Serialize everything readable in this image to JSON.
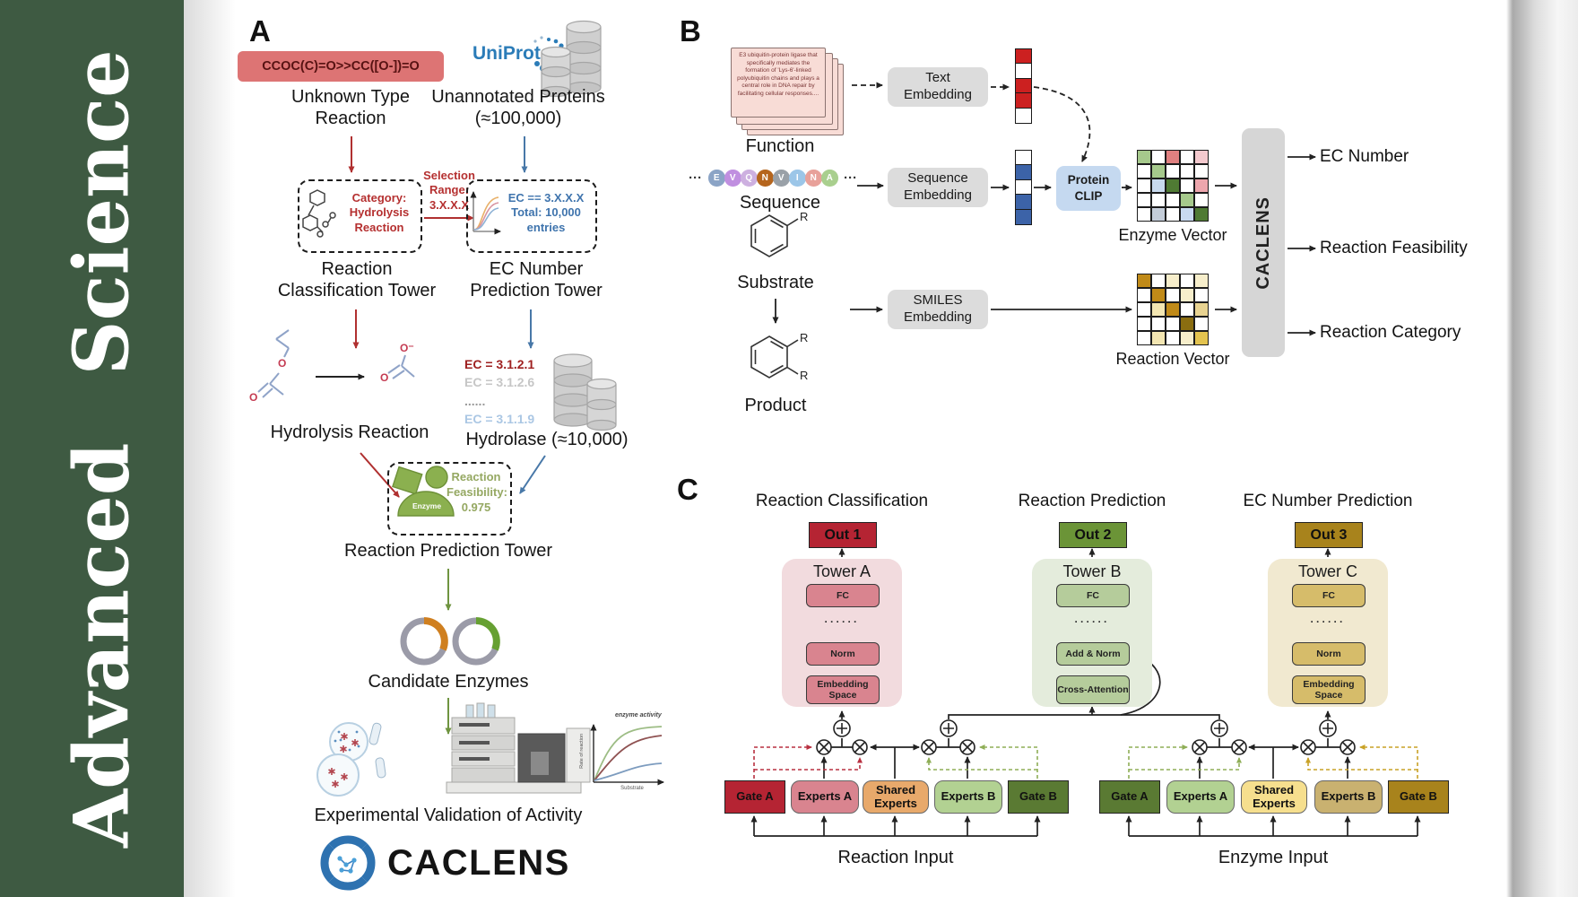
{
  "journal": {
    "name": "Advanced Science"
  },
  "colors": {
    "sidebar_green": "#3e5a42",
    "red_accent": "#b53030",
    "blue_accent": "#3f74ad",
    "green_arrow": "#6f9440",
    "smiles_box_bg": "#dd7474",
    "out1": "#b52433",
    "out2": "#6b9437",
    "out3": "#a8831c",
    "uniprot_blue": "#2b7cb8"
  },
  "panelA": {
    "label": "A",
    "smiles": "CCOC(C)=O>>CC([O-])=O",
    "unknown_reaction": "Unknown Type Reaction",
    "uniprot_logo": "UniProt",
    "unannotated_proteins": "Unannotated Proteins (≈100,000)",
    "selection_range": [
      "Selection",
      "Range:",
      "3.X.X.X"
    ],
    "category_box": [
      "Category:",
      "Hydrolysis",
      "Reaction"
    ],
    "ec_box": [
      "EC == 3.X.X.X",
      "Total: 10,000",
      "entries"
    ],
    "classification_tower": "Reaction Classification Tower",
    "ec_tower": "EC Number Prediction Tower",
    "hydrolysis_reaction": "Hydrolysis Reaction",
    "ec_list": [
      {
        "text": "EC = 3.1.2.1",
        "color": "#9e1f1f"
      },
      {
        "text": "EC = 3.1.2.6",
        "color": "#c6c6c6"
      },
      {
        "text": "......",
        "color": "#9a9a9a"
      },
      {
        "text": "EC = 3.1.1.9",
        "color": "#abc7e4"
      }
    ],
    "hydrolase": "Hydrolase (≈10,000)",
    "enzyme_blob": "Enzyme",
    "feasibility": [
      "Reaction",
      "Feasibility:",
      "0.975"
    ],
    "prediction_tower": "Reaction Prediction Tower",
    "candidate_enzymes": "Candidate Enzymes",
    "atoms": {
      "o": "O",
      "o_minus": "O⁻"
    },
    "activity_plot": {
      "curve_label": "enzyme activity",
      "ylabel": "Rate of reaction",
      "xlabel": "Substrate"
    },
    "validation": "Experimental Validation of Activity",
    "logo": "CACLENS"
  },
  "panelB": {
    "label": "B",
    "function_card": "E3 ubiquitin-protein ligase that specifically mediates the formation of 'Lys-6'-linked polyubiquitin chains and plays a central role in DNA repair by facilitating cellular responses....",
    "function_label": "Function",
    "sequence": {
      "ellipsis": "···",
      "residues": [
        {
          "letter": "E",
          "color": "#8ba4c6"
        },
        {
          "letter": "V",
          "color": "#c08fe0"
        },
        {
          "letter": "Q",
          "color": "#cdb0e0"
        },
        {
          "letter": "N",
          "color": "#b5651d"
        },
        {
          "letter": "V",
          "color": "#9aa1a8"
        },
        {
          "letter": "I",
          "color": "#9cc6e8"
        },
        {
          "letter": "N",
          "color": "#e8a19a"
        },
        {
          "letter": "A",
          "color": "#a9cf8e"
        }
      ],
      "label": "Sequence"
    },
    "substrate_label": "Substrate",
    "product_label": "Product",
    "r_group": "R",
    "text_embedding": [
      "Text",
      "Embedding"
    ],
    "sequence_embedding": [
      "Sequence",
      "Embedding"
    ],
    "smiles_embedding": [
      "SMILES",
      "Embedding"
    ],
    "protein_clip": [
      "Protein",
      "CLIP"
    ],
    "text_vector": [
      "#cc2020",
      "#ffffff",
      "#cc2020",
      "#cc2020",
      "#ffffff"
    ],
    "sequence_vector": [
      "#ffffff",
      "#3c63a8",
      "#ffffff",
      "#3c63a8",
      "#3c63a8"
    ],
    "enzyme_vector_label": "Enzyme Vector",
    "reaction_vector_label": "Reaction Vector",
    "enzyme_matrix": [
      [
        "#a6c98c",
        "#ffffff",
        "#e08080",
        "#ffffff",
        "#f4c9ce"
      ],
      [
        "#ffffff",
        "#a6c98c",
        "#ffffff",
        "#ffffff",
        "#ffffff"
      ],
      [
        "#ffffff",
        "#c8daee",
        "#4f7a33",
        "#ffffff",
        "#eda6ad"
      ],
      [
        "#ffffff",
        "#ffffff",
        "#ffffff",
        "#a6c98c",
        "#ffffff"
      ],
      [
        "#ffffff",
        "#c4cdd9",
        "#ffffff",
        "#c9daf0",
        "#4f7a33"
      ]
    ],
    "reaction_matrix": [
      [
        "#c08a18",
        "#ffffff",
        "#f7eecb",
        "#ffffff",
        "#f7eecb"
      ],
      [
        "#ffffff",
        "#c08a18",
        "#ffffff",
        "#f7eecb",
        "#ffffff"
      ],
      [
        "#ffffff",
        "#f3e6b2",
        "#c08a18",
        "#ffffff",
        "#e8d391"
      ],
      [
        "#ffffff",
        "#ffffff",
        "#ffffff",
        "#8a6d10",
        "#ffffff"
      ],
      [
        "#ffffff",
        "#f3e6b2",
        "#ffffff",
        "#f7eecb",
        "#e3c34f"
      ]
    ],
    "caclens_bar": "CACLENS",
    "outputs": [
      "EC Number",
      "Reaction Feasibility",
      "Reaction Category"
    ]
  },
  "panelC": {
    "label": "C",
    "columns": [
      {
        "title": "Reaction Classification",
        "out": "Out 1",
        "tower": "Tower A",
        "blocks": [
          "FC",
          "Norm",
          "Embedding Space"
        ]
      },
      {
        "title": "Reaction Prediction",
        "out": "Out 2",
        "tower": "Tower B",
        "blocks": [
          "FC",
          "Add & Norm",
          "Cross-Attention"
        ]
      },
      {
        "title": "EC Number Prediction",
        "out": "Out 3",
        "tower": "Tower C",
        "blocks": [
          "FC",
          "Norm",
          "Embedding Space"
        ]
      }
    ],
    "dots": "······",
    "moe_left": {
      "gate_a": "Gate A",
      "experts_a": "Experts A",
      "shared": "Shared Experts",
      "experts_b": "Experts B",
      "gate_b": "Gate B",
      "input": "Reaction Input"
    },
    "moe_right": {
      "gate_a": "Gate A",
      "experts_a": "Experts A",
      "shared": "Shared Experts",
      "experts_b": "Experts B",
      "gate_b": "Gate B",
      "input": "Enzyme Input"
    }
  }
}
